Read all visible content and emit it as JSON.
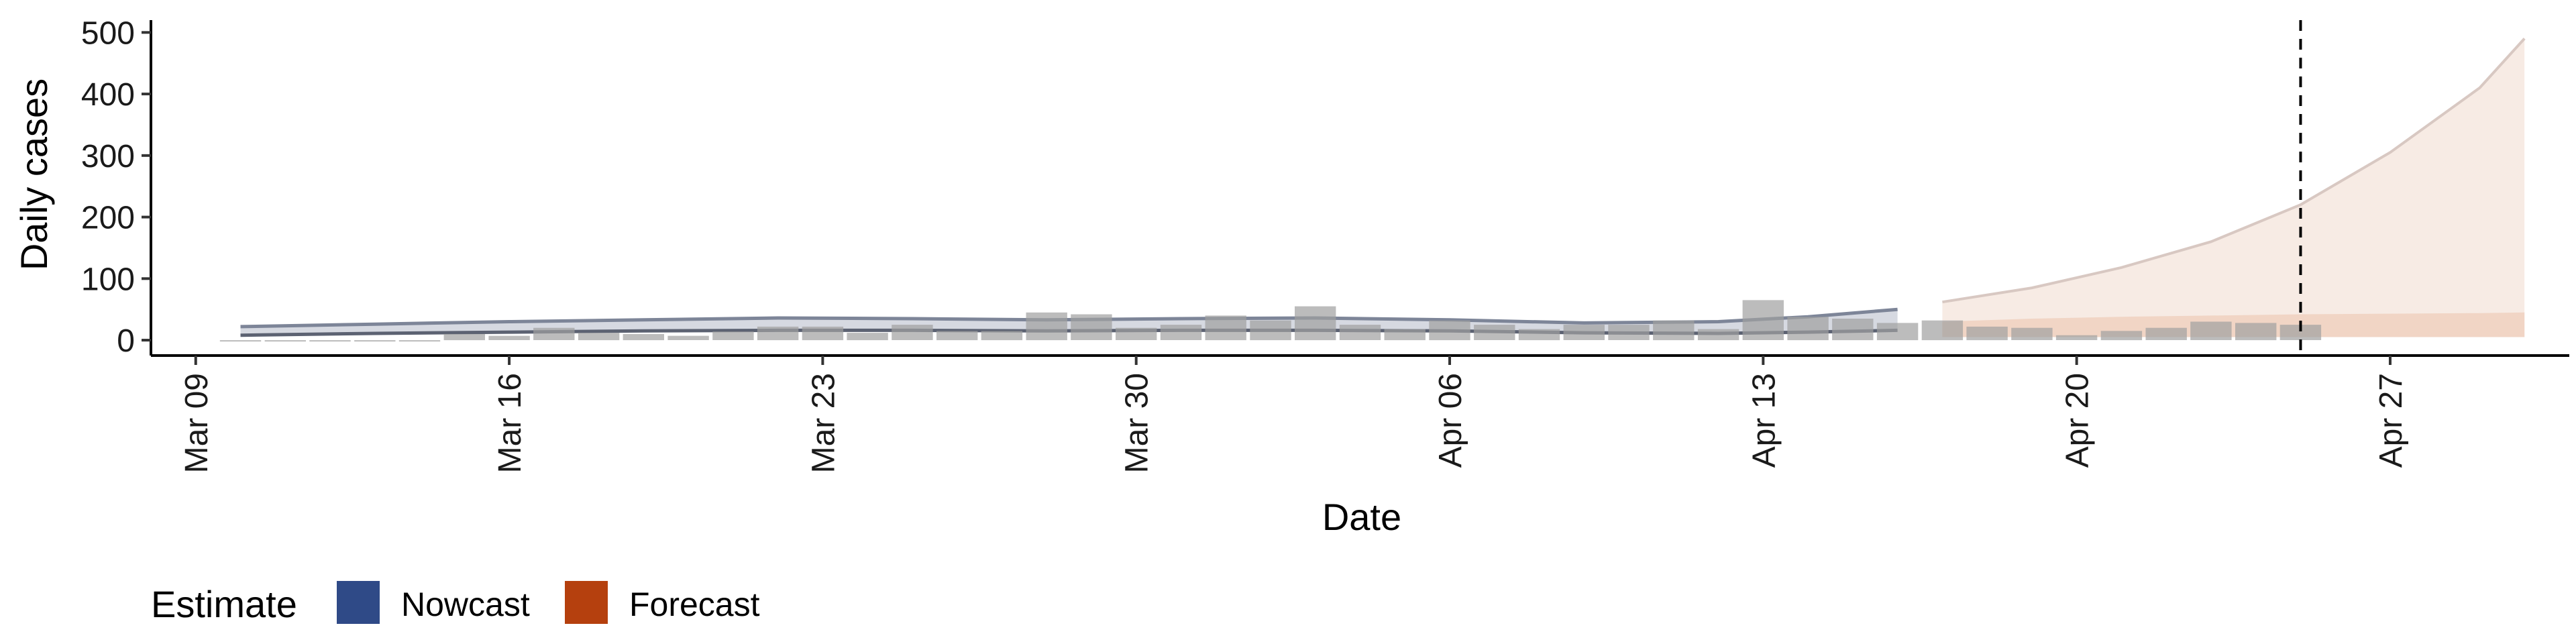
{
  "chart_data": {
    "type": "bar",
    "xlabel": "Date",
    "ylabel": "Daily cases",
    "ylim": [
      -25,
      520
    ],
    "yticks": [
      0,
      100,
      200,
      300,
      400,
      500
    ],
    "yticks_labels": [
      "0",
      "100",
      "200",
      "300",
      "400",
      "500"
    ],
    "xlim": [
      "2020-03-08",
      "2020-05-01"
    ],
    "xticks": [
      "2020-03-09",
      "2020-03-16",
      "2020-03-23",
      "2020-03-30",
      "2020-04-06",
      "2020-04-13",
      "2020-04-20",
      "2020-04-27"
    ],
    "xticks_labels": [
      "Mar 09",
      "Mar 16",
      "Mar 23",
      "Mar 30",
      "Apr 06",
      "Apr 13",
      "Apr 20",
      "Apr 27"
    ],
    "grid": false,
    "forecast_date_line": "2020-04-25",
    "reported_cases": {
      "dates": [
        "2020-03-10",
        "2020-03-11",
        "2020-03-12",
        "2020-03-13",
        "2020-03-14",
        "2020-03-15",
        "2020-03-16",
        "2020-03-17",
        "2020-03-18",
        "2020-03-19",
        "2020-03-20",
        "2020-03-21",
        "2020-03-22",
        "2020-03-23",
        "2020-03-24",
        "2020-03-25",
        "2020-03-26",
        "2020-03-27",
        "2020-03-28",
        "2020-03-29",
        "2020-03-30",
        "2020-03-31",
        "2020-04-01",
        "2020-04-02",
        "2020-04-03",
        "2020-04-04",
        "2020-04-05",
        "2020-04-06",
        "2020-04-07",
        "2020-04-08",
        "2020-04-09",
        "2020-04-10",
        "2020-04-11",
        "2020-04-12",
        "2020-04-13",
        "2020-04-14",
        "2020-04-15",
        "2020-04-16",
        "2020-04-17",
        "2020-04-18",
        "2020-04-19",
        "2020-04-20",
        "2020-04-21",
        "2020-04-22",
        "2020-04-23",
        "2020-04-24",
        "2020-04-25"
      ],
      "values": [
        0,
        0,
        0,
        0,
        0,
        10,
        7,
        20,
        12,
        10,
        7,
        14,
        22,
        22,
        12,
        25,
        15,
        15,
        45,
        42,
        20,
        25,
        40,
        32,
        55,
        25,
        18,
        32,
        25,
        18,
        25,
        25,
        32,
        18,
        65,
        38,
        35,
        28,
        32,
        22,
        20,
        8,
        15,
        20,
        30,
        28,
        25
      ]
    },
    "series": [
      {
        "name": "Nowcast",
        "color": "#2f4a87",
        "dates": [
          "2020-03-10",
          "2020-03-13",
          "2020-03-16",
          "2020-03-19",
          "2020-03-22",
          "2020-03-25",
          "2020-03-28",
          "2020-03-31",
          "2020-04-03",
          "2020-04-06",
          "2020-04-09",
          "2020-04-12",
          "2020-04-14",
          "2020-04-16"
        ],
        "median": [
          14,
          17,
          20,
          22,
          24,
          23,
          22,
          24,
          24,
          22,
          18,
          18,
          22,
          28
        ],
        "lower": [
          8,
          11,
          13,
          15,
          16,
          16,
          15,
          16,
          16,
          15,
          12,
          11,
          13,
          16
        ],
        "upper": [
          22,
          26,
          30,
          33,
          36,
          35,
          33,
          35,
          36,
          33,
          28,
          30,
          38,
          50
        ]
      },
      {
        "name": "Forecast",
        "color": "#b5400e",
        "dates": [
          "2020-04-17",
          "2020-04-19",
          "2020-04-21",
          "2020-04-23",
          "2020-04-25",
          "2020-04-27",
          "2020-04-29",
          "2020-04-30"
        ],
        "median": [
          0,
          0,
          0,
          0,
          0,
          0,
          0,
          0
        ],
        "lower": [
          5,
          5,
          5,
          5,
          5,
          5,
          5,
          5
        ],
        "upper": [
          62,
          85,
          118,
          160,
          220,
          305,
          410,
          490
        ],
        "inner_upper": [
          30,
          35,
          38,
          40,
          42,
          43,
          44,
          45
        ]
      }
    ],
    "legend": {
      "title": "Estimate",
      "placement": "bottom-left",
      "items": [
        {
          "label": "Nowcast",
          "color": "#2f4a87"
        },
        {
          "label": "Forecast",
          "color": "#b5400e"
        }
      ]
    }
  }
}
